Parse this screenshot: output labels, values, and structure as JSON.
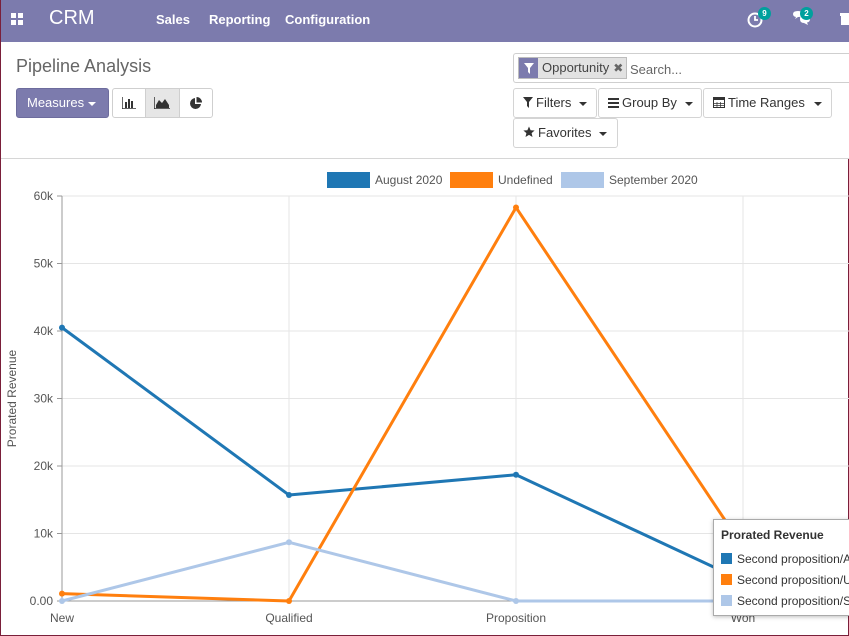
{
  "app": {
    "brand": "CRM",
    "menu": [
      "Sales",
      "Reporting",
      "Configuration"
    ],
    "activity_count": "9",
    "messages_count": "2",
    "icons": [
      "apps-grid-icon",
      "activity-clock-icon",
      "chat-bubbles-icon",
      "gift-icon"
    ]
  },
  "page": {
    "title": "Pipeline Analysis",
    "measures_label": "Measures",
    "view_icons": [
      "bar-chart-icon",
      "area-chart-icon",
      "pie-chart-icon"
    ],
    "active_view": "area-chart-icon",
    "facet_label": "Opportunity",
    "search_placeholder": "Search...",
    "filters_label": "Filters",
    "groupby_label": "Group By",
    "timeranges_label": "Time Ranges",
    "favorites_label": "Favorites"
  },
  "colors": {
    "navbar": "#7c7bad",
    "series": [
      "#1f77b4",
      "#ff7f0e",
      "#aec7e8"
    ]
  },
  "chart_data": {
    "type": "line",
    "ylabel": "Prorated Revenue",
    "categories": [
      "New",
      "Qualified",
      "Proposition",
      "Won"
    ],
    "ylim": [
      0,
      60000
    ],
    "yticks": [
      "0.00",
      "10k",
      "20k",
      "30k",
      "40k",
      "50k",
      "60k"
    ],
    "grid": true,
    "legend": "top-center",
    "series": [
      {
        "name": "August 2020",
        "values": [
          40500,
          15700,
          18700,
          3000
        ]
      },
      {
        "name": "Undefined",
        "values": [
          1100,
          0,
          58300,
          8000
        ]
      },
      {
        "name": "September 2020",
        "values": [
          0,
          8700,
          0,
          0
        ]
      }
    ],
    "tooltip": {
      "title": "Prorated Revenue",
      "rows": [
        "Second proposition/A",
        "Second proposition/U",
        "Second proposition/S"
      ]
    }
  }
}
